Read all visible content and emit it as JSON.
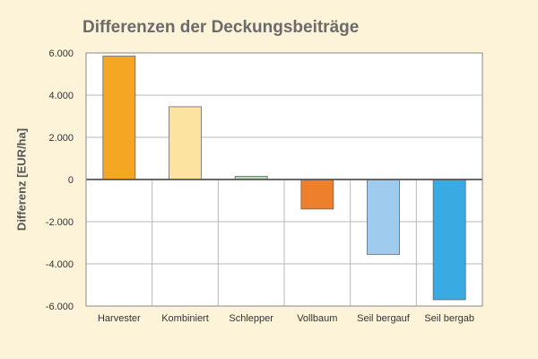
{
  "chart_data": {
    "type": "bar",
    "title": "Differenzen der Deckungsbeiträge",
    "ylabel": "Differenz [EUR/ha]",
    "xlabel": "",
    "ylim": [
      -6000,
      6000
    ],
    "yticks": [
      6000,
      4000,
      2000,
      0,
      -2000,
      -4000,
      -6000
    ],
    "ytick_labels": [
      "6.000",
      "4.000",
      "2.000",
      "0",
      "-2.000",
      "-4.000",
      "-6.000"
    ],
    "categories": [
      "Harvester",
      "Kombiniert",
      "Schlepper",
      "Vollbaum",
      "Seil bergauf",
      "Seil bergab"
    ],
    "values": [
      5850,
      3450,
      150,
      -1400,
      -3550,
      -5700
    ],
    "bar_colors": [
      "#f5a623",
      "#fde3a0",
      "#b6dcb4",
      "#ee7f2d",
      "#9fcbef",
      "#3aaae2"
    ],
    "grid": true,
    "legend": "none"
  }
}
